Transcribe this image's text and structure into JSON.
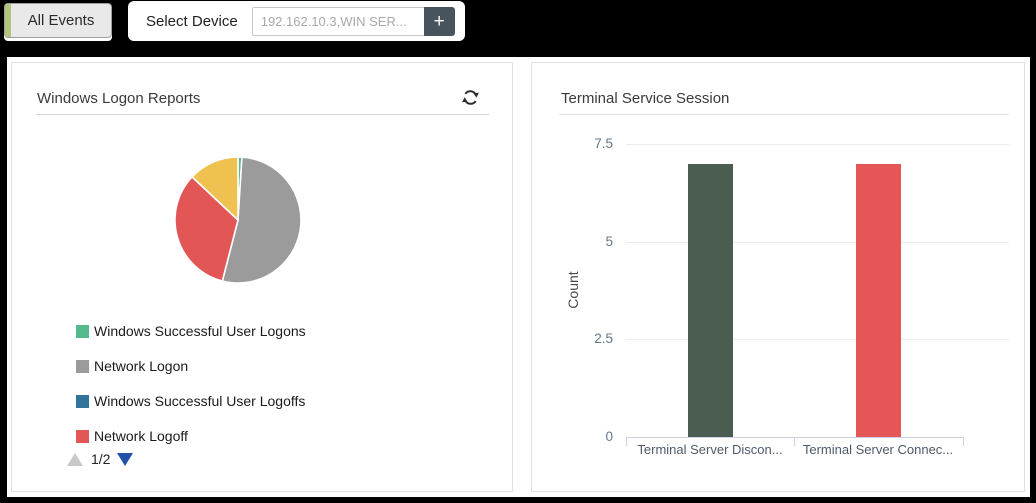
{
  "topbar": {
    "all_events": {
      "label": "All Events",
      "accent_color": "#b3c57c"
    },
    "select_device": {
      "label": "Select Device",
      "input_placeholder": "192.162.10.3,WIN SER...",
      "add_button": "+"
    }
  },
  "panels": {
    "logon": {
      "title": "Windows Logon Reports"
    },
    "terminal": {
      "title": "Terminal Service Session"
    }
  },
  "icons": {
    "refresh": "refresh-icon",
    "add": "plus-icon",
    "legend_page_up": "triangle-up-icon",
    "legend_page_down": "triangle-down-icon"
  },
  "chart_data": [
    {
      "type": "pie",
      "title": "Windows Logon Reports",
      "slices": [
        {
          "label": "Windows Successful User Logons",
          "percent": 1,
          "color": "#54b98b"
        },
        {
          "label": "Network Logon",
          "percent": 53,
          "color": "#9b9b9b"
        },
        {
          "label": "Windows Successful User Logoffs",
          "percent": 0,
          "color": "#31739b"
        },
        {
          "label": "Network Logoff",
          "percent": 33,
          "color": "#e25656"
        },
        {
          "label": "",
          "percent": 13,
          "color": "#efc150"
        }
      ],
      "legend": [
        {
          "label": "Windows Successful User Logons",
          "color": "#54b98b"
        },
        {
          "label": "Network Logon",
          "color": "#9b9b9b"
        },
        {
          "label": "Windows Successful User Logoffs",
          "color": "#31739b"
        },
        {
          "label": "Network Logoff",
          "color": "#e25656"
        }
      ],
      "legend_pagination": {
        "current_page": "1/2",
        "up_color": "#c8c8c8",
        "down_color": "#2152a8"
      },
      "legend_position": "bottom-left"
    },
    {
      "type": "bar",
      "title": "Terminal Service Session",
      "categories": [
        "Terminal Server Discon...",
        "Terminal Server Connec..."
      ],
      "values": [
        7,
        7
      ],
      "bar_colors": [
        "#4b5d50",
        "#e55656"
      ],
      "xlabel": "",
      "ylabel": "Count",
      "yticks": [
        0,
        2.5,
        5,
        7.5
      ],
      "ylim": [
        0,
        7.5
      ],
      "grid": true,
      "legend_position": "none"
    }
  ]
}
